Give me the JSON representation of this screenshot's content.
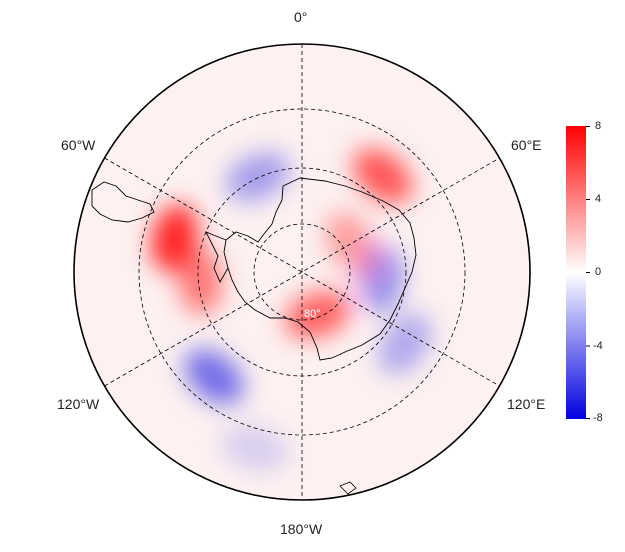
{
  "map": {
    "longitude_labels": {
      "top": "0°",
      "upper_left": "60°W",
      "upper_right": "60°E",
      "lower_left": "120°W",
      "lower_right": "120°E",
      "bottom": "180°W"
    },
    "latitude_circle_label": "80°",
    "projection": "south-polar-stereographic",
    "grid": "dashed",
    "gridline_color": "#000000",
    "coastline_color": "#000000"
  },
  "colorbar": {
    "ticks": [
      "8",
      "4",
      "0",
      "-4",
      "-8"
    ],
    "min": -8,
    "max": 8,
    "colors": {
      "high": "#ff0000",
      "mid": "#ffffff",
      "low": "#0000e0"
    }
  },
  "anomaly_patches": [
    {
      "lon": -25,
      "colat": 0.46,
      "sign": "negative",
      "strength": 0.35
    },
    {
      "lon": 40,
      "colat": 0.55,
      "sign": "positive",
      "strength": 0.65
    },
    {
      "lon": 95,
      "colat": 0.35,
      "sign": "negative",
      "strength": 0.4
    },
    {
      "lon": 125,
      "colat": 0.55,
      "sign": "negative",
      "strength": 0.3
    },
    {
      "lon": -75,
      "colat": 0.58,
      "sign": "positive",
      "strength": 0.85
    },
    {
      "lon": -95,
      "colat": 0.45,
      "sign": "positive",
      "strength": 0.5
    },
    {
      "lon": 160,
      "colat": 0.2,
      "sign": "positive",
      "strength": 0.6
    },
    {
      "lon": -140,
      "colat": 0.6,
      "sign": "negative",
      "strength": 0.55
    },
    {
      "lon": -165,
      "colat": 0.8,
      "sign": "negative",
      "strength": 0.15
    },
    {
      "lon": 60,
      "colat": 0.25,
      "sign": "positive",
      "strength": 0.35
    }
  ]
}
